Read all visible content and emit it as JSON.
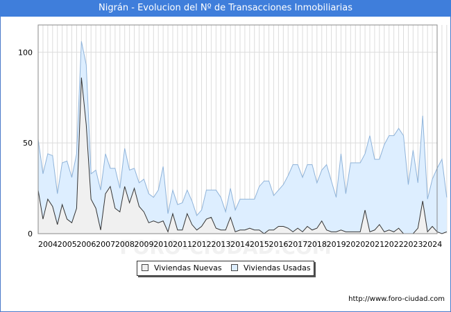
{
  "chart_data": {
    "type": "area",
    "title": "Nigrán - Evolucion del Nº de Transacciones Inmobiliarias",
    "xlabel": "",
    "ylabel": "",
    "ylim": [
      0,
      115
    ],
    "yticks": [
      0,
      50,
      100
    ],
    "x_start": 2004,
    "x_end": 2024.75,
    "x_labels": [
      "2004",
      "2005",
      "2006",
      "2007",
      "2008",
      "2009",
      "2010",
      "2011",
      "2012",
      "2013",
      "2014",
      "2015",
      "2016",
      "2017",
      "2018",
      "2019",
      "2020",
      "2021",
      "2022",
      "2023",
      "2024"
    ],
    "grid": true,
    "legend_position": "bottom",
    "series": [
      {
        "name": "Viviendas Usadas",
        "color_fill": "#ddeeff",
        "color_line": "#8fb3d9",
        "values": [
          52,
          33,
          44,
          43,
          22,
          39,
          40,
          31,
          44,
          106,
          93,
          33,
          35,
          24,
          44,
          36,
          36,
          25,
          47,
          35,
          36,
          28,
          30,
          22,
          20,
          24,
          37,
          11,
          24,
          16,
          17,
          24,
          18,
          10,
          13,
          24,
          24,
          24,
          20,
          12,
          25,
          13,
          19,
          19,
          19,
          19,
          26,
          29,
          29,
          21,
          24,
          27,
          32,
          38,
          38,
          31,
          38,
          38,
          28,
          35,
          38,
          29,
          20,
          44,
          22,
          39,
          39,
          39,
          44,
          54,
          41,
          41,
          49,
          54,
          54,
          58,
          54,
          27,
          46,
          28,
          65,
          19,
          30,
          36,
          41,
          20
        ]
      },
      {
        "name": "Viviendas Nuevas",
        "color_fill": "#f0f0f0",
        "color_line": "#333333",
        "values": [
          24,
          8,
          19,
          15,
          5,
          16,
          8,
          6,
          14,
          86,
          60,
          19,
          14,
          2,
          22,
          26,
          14,
          12,
          26,
          17,
          25,
          15,
          12,
          6,
          7,
          6,
          7,
          1,
          11,
          2,
          2,
          11,
          5,
          2,
          4,
          8,
          9,
          3,
          2,
          2,
          9,
          1,
          2,
          2,
          3,
          2,
          2,
          0,
          2,
          2,
          4,
          4,
          3,
          1,
          3,
          1,
          4,
          2,
          3,
          7,
          2,
          1,
          1,
          2,
          1,
          1,
          1,
          1,
          13,
          1,
          2,
          5,
          1,
          2,
          1,
          3,
          0,
          0,
          0,
          3,
          18,
          1,
          4,
          1,
          0,
          1
        ]
      }
    ]
  },
  "legend": {
    "nuevas_label": "Viviendas Nuevas",
    "usadas_label": "Viviendas Usadas"
  },
  "footer": {
    "url": "http://www.foro-ciudad.com"
  },
  "watermark": {
    "text": "FORO-CIUDAD.COM"
  }
}
